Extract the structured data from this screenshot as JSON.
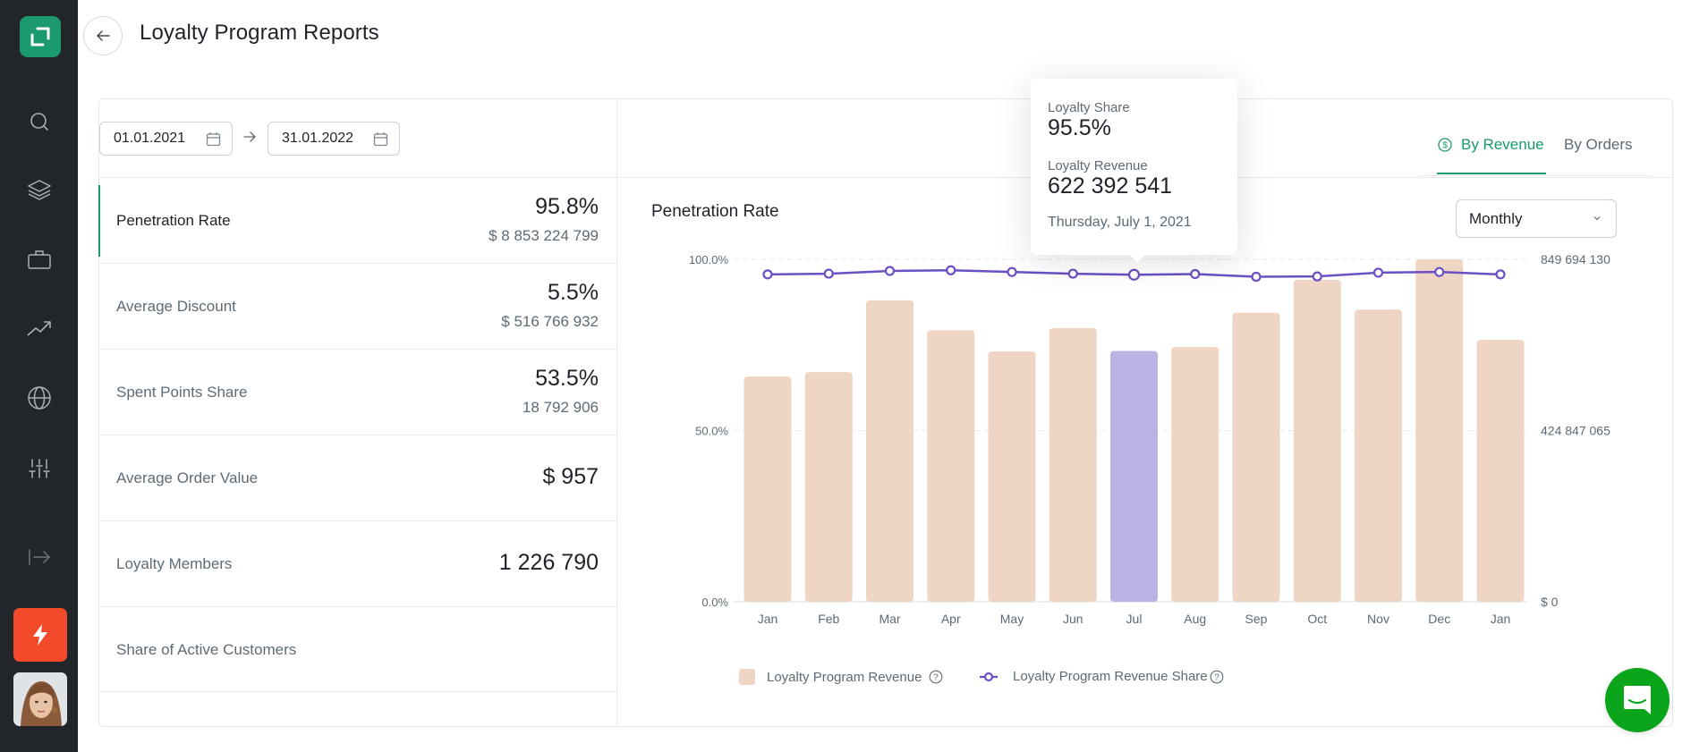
{
  "header": {
    "title": "Loyalty Program Reports",
    "back_icon": "arrow-left-icon"
  },
  "sidebar": {
    "logo_icon": "app-logo-icon",
    "items": [
      {
        "name": "search",
        "icon": "search-icon"
      },
      {
        "name": "layers",
        "icon": "layers-icon"
      },
      {
        "name": "briefcase",
        "icon": "briefcase-icon"
      },
      {
        "name": "trending",
        "icon": "trending-up-icon"
      },
      {
        "name": "globe",
        "icon": "globe-icon"
      },
      {
        "name": "settings",
        "icon": "sliders-icon"
      },
      {
        "name": "logout",
        "icon": "logout-icon"
      }
    ],
    "action_icon": "lightning-icon",
    "accent_action_color": "#f24a2a"
  },
  "date_range": {
    "start": "01.01.2021",
    "end": "31.01.2022",
    "separator_icon": "arrow-right-icon"
  },
  "metrics": [
    {
      "label": "Penetration Rate",
      "value": "95.8%",
      "sub": "$ 8 853 224 799",
      "active": true
    },
    {
      "label": "Average Discount",
      "value": "5.5%",
      "sub": "$ 516 766 932",
      "active": false
    },
    {
      "label": "Spent Points Share",
      "value": "53.5%",
      "sub": "18 792 906",
      "active": false
    },
    {
      "label": "Average Order Value",
      "value": "$ 957",
      "sub": "",
      "active": false
    },
    {
      "label": "Loyalty Members",
      "value": "1 226 790",
      "sub": "",
      "active": false
    },
    {
      "label": "Share of Active Customers",
      "value": "",
      "sub": "",
      "active": false
    }
  ],
  "tabs": [
    {
      "label": "By Revenue",
      "icon": "dollar-circle-icon",
      "active": true
    },
    {
      "label": "By Orders",
      "active": false
    }
  ],
  "period_select": {
    "value": "Monthly"
  },
  "tooltip": {
    "share_label": "Loyalty Share",
    "share_value": "95.5%",
    "revenue_label": "Loyalty Revenue",
    "revenue_value": "622 392 541",
    "date": "Thursday, July 1, 2021"
  },
  "colors": {
    "brand": "#1a9a6e",
    "bar": "#efd6c4",
    "bar_highlight": "#bcb2e3",
    "line": "#6b4fc4",
    "chat": "#0aa51a"
  },
  "chart_data": {
    "type": "bar",
    "title": "Penetration Rate",
    "categories": [
      "Jan",
      "Feb",
      "Mar",
      "Apr",
      "May",
      "Jun",
      "Jul",
      "Aug",
      "Sep",
      "Oct",
      "Nov",
      "Dec",
      "Jan"
    ],
    "highlighted_index": 6,
    "series": [
      {
        "name": "Loyalty Program Revenue",
        "type": "bar",
        "axis": "right",
        "values": [
          559000000,
          570000000,
          748000000,
          674000000,
          621000000,
          679000000,
          622392541,
          632000000,
          717000000,
          799000000,
          725000000,
          849694130,
          650000000
        ]
      },
      {
        "name": "Loyalty Program Revenue Share",
        "type": "line",
        "axis": "left",
        "values": [
          95.6,
          95.8,
          96.6,
          96.8,
          96.3,
          95.8,
          95.5,
          95.7,
          94.9,
          95.0,
          96.1,
          96.3,
          95.6
        ]
      }
    ],
    "left_axis": {
      "ticks": [
        "0.0%",
        "50.0%",
        "100.0%"
      ],
      "ylim": [
        0,
        100
      ]
    },
    "right_axis": {
      "ticks": [
        "$ 0",
        "424 847 065",
        "849 694 130"
      ],
      "ylim": [
        0,
        849694130
      ]
    },
    "grid": true,
    "legend": {
      "position": "bottom",
      "entries": [
        "Loyalty Program Revenue",
        "Loyalty Program Revenue Share"
      ]
    }
  },
  "chat": {
    "icon": "chat-icon"
  }
}
